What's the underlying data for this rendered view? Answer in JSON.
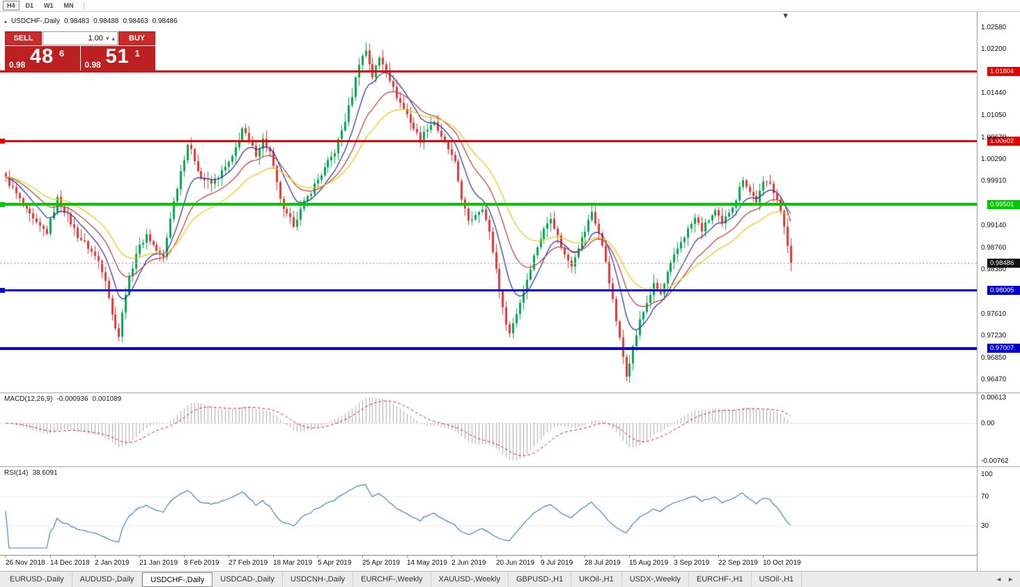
{
  "toolbar": {
    "timeframes": [
      {
        "label": "H4",
        "active": true
      },
      {
        "label": "D1",
        "active": false
      },
      {
        "label": "W1",
        "active": false
      },
      {
        "label": "MN",
        "active": false
      }
    ]
  },
  "chart_header": {
    "collapse_icon": "▴",
    "symbol": "USDCHF-,Daily",
    "open": "0.98483",
    "high": "0.98488",
    "low": "0.98463",
    "close": "0.98486"
  },
  "trade_panel": {
    "sell_label": "SELL",
    "buy_label": "BUY",
    "volume_value": "1.00",
    "bid": {
      "prefix": "0.98",
      "big": "48",
      "sup": "6"
    },
    "ask": {
      "prefix": "0.98",
      "big": "51",
      "sup": "1"
    }
  },
  "colors": {
    "candle_up": "#00a650",
    "candle_down": "#e53535",
    "ma_fast": "#3434a8",
    "ma_mid": "#c24040",
    "ma_slow": "#e6c913",
    "macd_hist": "#aaaaaa",
    "macd_signal": "#cc2626",
    "rsi_line": "#3e7fc1",
    "level_red": "#e60000",
    "level_green": "#00ca00",
    "level_blue": "#0000d2",
    "badge_current": "#111111"
  },
  "chart_data": {
    "type": "candlestick",
    "symbol": "USDCHF-",
    "timeframe": "Daily",
    "price_range": {
      "top": 1.0284,
      "bottom": 0.9624
    },
    "candle_count": 230,
    "last_close": 0.98486,
    "close_waypoints": [
      [
        0,
        0.9995
      ],
      [
        3,
        0.9968
      ],
      [
        6,
        0.9938
      ],
      [
        9,
        0.9915
      ],
      [
        12,
        0.9902
      ],
      [
        15,
        0.996
      ],
      [
        18,
        0.993
      ],
      [
        21,
        0.9896
      ],
      [
        24,
        0.9876
      ],
      [
        27,
        0.9852
      ],
      [
        29,
        0.9822
      ],
      [
        31,
        0.9758
      ],
      [
        33,
        0.9722
      ],
      [
        35,
        0.9798
      ],
      [
        38,
        0.9866
      ],
      [
        41,
        0.9898
      ],
      [
        44,
        0.987
      ],
      [
        46,
        0.9858
      ],
      [
        48,
        0.9928
      ],
      [
        51,
        1.0008
      ],
      [
        53,
        1.0055
      ],
      [
        55,
        1.0028
      ],
      [
        57,
        0.9996
      ],
      [
        60,
        0.9986
      ],
      [
        63,
        1.0006
      ],
      [
        66,
        1.003
      ],
      [
        69,
        1.0082
      ],
      [
        71,
        1.0058
      ],
      [
        73,
        1.0038
      ],
      [
        75,
        1.0062
      ],
      [
        77,
        1.004
      ],
      [
        79,
        0.9985
      ],
      [
        81,
        0.9938
      ],
      [
        84,
        0.9916
      ],
      [
        87,
        0.9952
      ],
      [
        90,
        0.9984
      ],
      [
        93,
        1.0012
      ],
      [
        96,
        1.0042
      ],
      [
        99,
        1.0096
      ],
      [
        101,
        1.014
      ],
      [
        103,
        1.0196
      ],
      [
        105,
        1.0218
      ],
      [
        107,
        1.0172
      ],
      [
        109,
        1.0204
      ],
      [
        111,
        1.0186
      ],
      [
        113,
        1.015
      ],
      [
        115,
        1.0126
      ],
      [
        117,
        1.0106
      ],
      [
        119,
        1.0082
      ],
      [
        121,
        1.0062
      ],
      [
        123,
        1.0084
      ],
      [
        125,
        1.0094
      ],
      [
        127,
        1.0064
      ],
      [
        129,
        1.0046
      ],
      [
        131,
        1.002
      ],
      [
        133,
        0.9962
      ],
      [
        135,
        0.9918
      ],
      [
        137,
        0.9934
      ],
      [
        139,
        0.9946
      ],
      [
        141,
        0.99
      ],
      [
        143,
        0.9838
      ],
      [
        145,
        0.9768
      ],
      [
        147,
        0.9726
      ],
      [
        149,
        0.9762
      ],
      [
        151,
        0.98
      ],
      [
        153,
        0.9842
      ],
      [
        155,
        0.9878
      ],
      [
        157,
        0.9906
      ],
      [
        159,
        0.993
      ],
      [
        161,
        0.9894
      ],
      [
        163,
        0.9862
      ],
      [
        165,
        0.9846
      ],
      [
        167,
        0.9878
      ],
      [
        169,
        0.9904
      ],
      [
        171,
        0.9938
      ],
      [
        173,
        0.99
      ],
      [
        175,
        0.9852
      ],
      [
        177,
        0.9782
      ],
      [
        179,
        0.9716
      ],
      [
        181,
        0.9656
      ],
      [
        183,
        0.9702
      ],
      [
        185,
        0.9748
      ],
      [
        187,
        0.978
      ],
      [
        189,
        0.981
      ],
      [
        191,
        0.9794
      ],
      [
        193,
        0.983
      ],
      [
        195,
        0.986
      ],
      [
        197,
        0.9886
      ],
      [
        199,
        0.9906
      ],
      [
        201,
        0.9926
      ],
      [
        203,
        0.9906
      ],
      [
        205,
        0.9924
      ],
      [
        207,
        0.9938
      ],
      [
        209,
        0.9914
      ],
      [
        211,
        0.9938
      ],
      [
        213,
        0.996
      ],
      [
        215,
        0.9996
      ],
      [
        217,
        0.9972
      ],
      [
        219,
        0.9956
      ],
      [
        221,
        0.9986
      ],
      [
        223,
        0.999
      ],
      [
        225,
        0.9958
      ],
      [
        227,
        0.9912
      ],
      [
        228,
        0.9882
      ],
      [
        229,
        0.98486
      ]
    ],
    "date_ticks": {
      "candle_step": 13,
      "labels": [
        "26 Nov 2018",
        "14 Dec 2018",
        "2 Jan 2019",
        "21 Jan 2019",
        "8 Feb 2019",
        "27 Feb 2019",
        "18 Mar 2019",
        "5 Apr 2019",
        "25 Apr 2019",
        "14 May 2019",
        "2 Jun 2019",
        "20 Jun 2019",
        "9 Jul 2019",
        "28 Jul 2019",
        "15 Aug 2019",
        "3 Sep 2019",
        "22 Sep 2019",
        "10 Oct 2019"
      ]
    },
    "price_axis_ticks": [
      "1.02580",
      "1.02200",
      "1.01440",
      "1.01050",
      "1.00670",
      "1.00290",
      "0.99910",
      "0.99140",
      "0.98760",
      "0.98380",
      "0.97610",
      "0.97230",
      "0.96850",
      "0.96470"
    ],
    "levels": [
      {
        "price": 1.01804,
        "label": "1.01804",
        "color": "red",
        "thickness": 3,
        "left_marker": false
      },
      {
        "price": 1.00602,
        "label": "1.00602",
        "color": "red",
        "thickness": 3,
        "left_marker": true
      },
      {
        "price": 0.99501,
        "label": "0.99501",
        "color": "green",
        "thickness": 4,
        "left_marker": true
      },
      {
        "price": 0.98005,
        "label": "0.98005",
        "color": "blue",
        "thickness": 3,
        "left_marker": true
      },
      {
        "price": 0.97007,
        "label": "0.97007",
        "color": "blue",
        "thickness": 4,
        "left_marker": false
      }
    ],
    "current_price": {
      "value": 0.98486,
      "label": "0.98486"
    },
    "moving_averages": [
      {
        "period": 9,
        "color_key": "ma_fast"
      },
      {
        "period": 18,
        "color_key": "ma_mid"
      },
      {
        "period": 30,
        "color_key": "ma_slow"
      }
    ],
    "macd": {
      "label": "MACD(12,26,9)",
      "fast": 12,
      "slow": 26,
      "signal": 9,
      "value_main": "-0.000936",
      "value_signal": "0.001089",
      "axis_top": "0.00613",
      "axis_zero": "0.00",
      "axis_bottom": "-0.00762"
    },
    "rsi": {
      "label": "RSI(14)",
      "period": 14,
      "value": "38.6091",
      "axis_labels": [
        {
          "v": 100,
          "label": "100"
        },
        {
          "v": 70,
          "label": "70"
        },
        {
          "v": 30,
          "label": "30"
        }
      ],
      "guide_levels": [
        70,
        30
      ]
    }
  },
  "tab_bar": {
    "tabs": [
      "EURUSD-,Daily",
      "AUDUSD-,Daily",
      "USDCHF-,Daily",
      "USDCAD-,Daily",
      "USDCNH-,Daily",
      "EURCHF-,Weekly",
      "XAUUSD-,Weekly",
      "GBPUSD-,H1",
      "UKOil-,H1",
      "USDX-,Weekly",
      "EURCHF-,H1",
      "USOil-,H1"
    ],
    "active_index": 2,
    "nav_left": "◄",
    "nav_right": "►"
  }
}
